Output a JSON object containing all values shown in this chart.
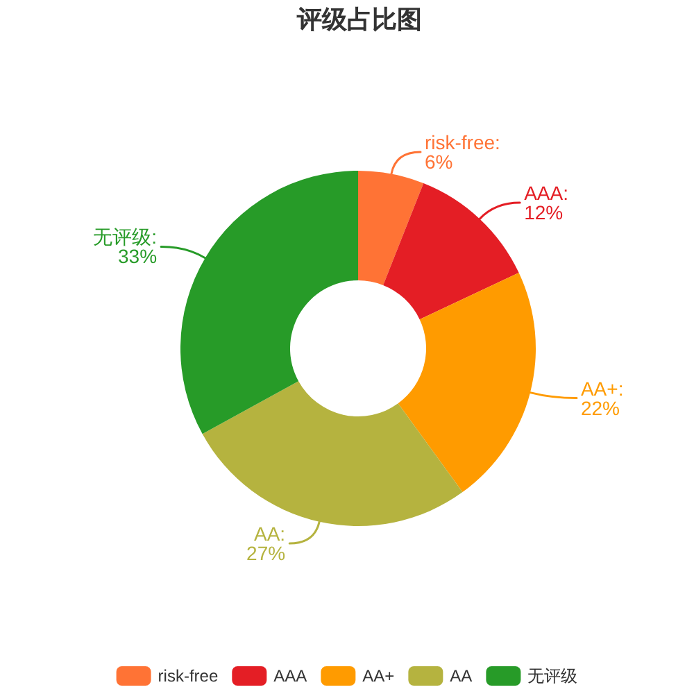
{
  "chart_data": {
    "type": "donut",
    "title": "评级占比图",
    "categories": [
      "risk-free",
      "AAA",
      "AA+",
      "AA",
      "无评级"
    ],
    "values": [
      6,
      12,
      22,
      27,
      33
    ],
    "colors": [
      "#ff7335",
      "#e41e25",
      "#ff9b00",
      "#b5b33f",
      "#279b28"
    ],
    "value_labels": [
      "risk-free:\n6%",
      "AAA:\n12%",
      "AA+:\n22%",
      "AA:\n27%",
      "无评级:\n33%"
    ],
    "legend": "bottom"
  }
}
